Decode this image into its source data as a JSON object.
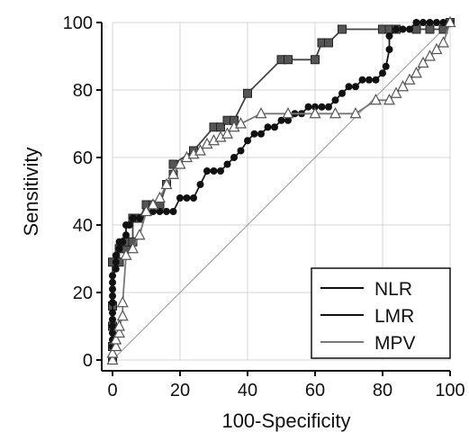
{
  "chart_data": {
    "type": "line",
    "title": "",
    "xlabel": "100-Specificity",
    "ylabel": "Sensitivity",
    "xlim": [
      0,
      100
    ],
    "ylim": [
      0,
      100
    ],
    "xticks": [
      0,
      20,
      40,
      60,
      80,
      100
    ],
    "yticks": [
      0,
      20,
      40,
      60,
      80,
      100
    ],
    "grid": true,
    "legend": "bottom-right",
    "series": [
      {
        "name": "NLR",
        "marker": "square",
        "color": "#444444",
        "x": [
          0,
          0,
          0,
          0,
          0,
          2,
          2,
          4,
          4,
          6,
          6,
          8,
          10,
          12,
          14,
          16,
          18,
          18,
          24,
          30,
          32,
          34,
          36,
          40,
          50,
          52,
          60,
          62,
          64,
          68,
          80,
          82,
          84,
          90,
          94,
          98,
          100
        ],
        "y": [
          0,
          4,
          10,
          16,
          29,
          29,
          33,
          33,
          35,
          35,
          42,
          42,
          46,
          46,
          46,
          52,
          55,
          58,
          62,
          69,
          69,
          71,
          71,
          79,
          89,
          89,
          89,
          94,
          94,
          98,
          98,
          98,
          98,
          98,
          98,
          98,
          100
        ]
      },
      {
        "name": "LMR",
        "marker": "circle",
        "color": "#1a1a1a",
        "x": [
          0,
          0,
          0,
          0,
          0,
          0,
          0,
          0,
          0,
          0,
          0,
          0,
          1,
          1,
          1,
          2,
          2,
          3,
          4,
          4,
          5,
          6,
          8,
          10,
          12,
          14,
          16,
          18,
          20,
          22,
          24,
          26,
          28,
          30,
          32,
          34,
          36,
          38,
          40,
          42,
          44,
          46,
          48,
          50,
          52,
          54,
          56,
          58,
          60,
          62,
          64,
          66,
          68,
          70,
          72,
          74,
          76,
          78,
          80,
          81,
          82,
          82,
          84,
          86,
          88,
          90,
          92,
          94,
          96,
          98,
          100
        ],
        "y": [
          0,
          4,
          6,
          8,
          10,
          12,
          14,
          17,
          19,
          21,
          23,
          25,
          27,
          29,
          31,
          33,
          35,
          35,
          37,
          40,
          40,
          42,
          42,
          44,
          44,
          44,
          44,
          44,
          48,
          48,
          48,
          52,
          56,
          56,
          56,
          58,
          60,
          62,
          65,
          67,
          67,
          69,
          69,
          71,
          71,
          73,
          73,
          75,
          75,
          75,
          75,
          77,
          79,
          81,
          81,
          83,
          83,
          83,
          85,
          87,
          92,
          96,
          98,
          98,
          98,
          100,
          100,
          100,
          100,
          100,
          100
        ]
      },
      {
        "name": "MPV",
        "marker": "triangle",
        "color": "#777777",
        "x": [
          0,
          0,
          1,
          1,
          2,
          2,
          3,
          3,
          4,
          6,
          8,
          10,
          12,
          14,
          16,
          18,
          20,
          22,
          24,
          26,
          28,
          30,
          32,
          34,
          36,
          38,
          44,
          52,
          60,
          66,
          72,
          78,
          82,
          84,
          86,
          88,
          90,
          92,
          94,
          96,
          98,
          100
        ],
        "y": [
          0,
          2,
          4,
          6,
          8,
          10,
          13,
          17,
          31,
          33,
          37,
          44,
          46,
          48,
          52,
          55,
          58,
          60,
          61,
          62,
          64,
          65,
          66,
          67,
          69,
          70,
          73,
          73,
          73,
          73,
          73,
          77,
          77,
          79,
          81,
          83,
          85,
          88,
          90,
          92,
          94,
          100
        ]
      },
      {
        "name": "",
        "marker": "none",
        "color": "#999999",
        "x": [
          0,
          100
        ],
        "y": [
          0,
          100
        ]
      }
    ]
  }
}
